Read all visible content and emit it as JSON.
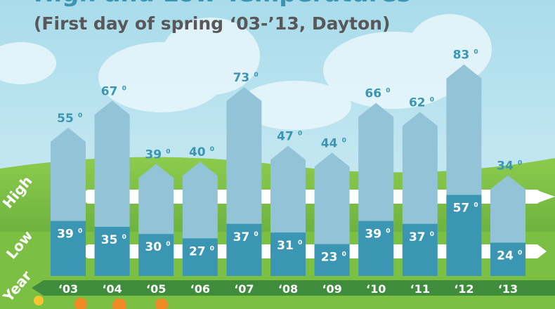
{
  "chart_data": {
    "type": "bar",
    "title": "High and Low Temperatures",
    "subtitle": "(First day of spring ‘03-’13, Dayton)",
    "categories": [
      "‘03",
      "‘04",
      "‘05",
      "‘06",
      "‘07",
      "‘08",
      "‘09",
      "‘10",
      "‘11",
      "‘12",
      "‘13"
    ],
    "series": [
      {
        "name": "High",
        "values": [
          55,
          67,
          39,
          40,
          73,
          47,
          44,
          66,
          62,
          83,
          34
        ]
      },
      {
        "name": "Low",
        "values": [
          39,
          35,
          30,
          27,
          37,
          31,
          23,
          39,
          37,
          57,
          24
        ]
      }
    ],
    "row_labels": {
      "high": "High",
      "low": "Low",
      "year": "Year"
    },
    "unit_mark": "0",
    "colors": {
      "high": "#93c3d6",
      "low": "#3a96b2",
      "high_label": "#3a96b2",
      "low_label": "#ffffff",
      "sky": "#b5e2ee",
      "grass": "#6ab43e",
      "year_band": "#3f8d3c",
      "title": "#3a96b2",
      "subtitle": "#58585a"
    }
  }
}
